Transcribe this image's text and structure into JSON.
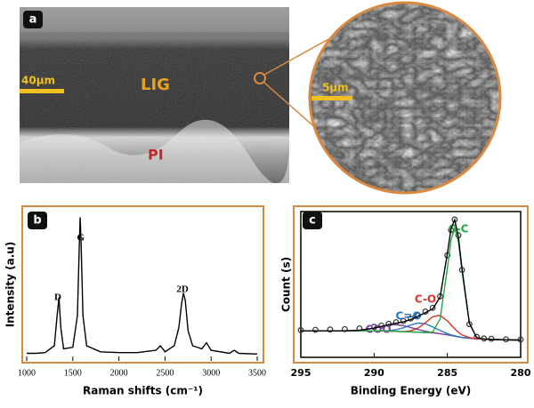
{
  "figure_a": {
    "label": "a",
    "scale_bar_large": "40μm",
    "scale_bar_small": "5μm",
    "region_top": "LIG",
    "region_bottom": "PI"
  },
  "chart_data": [
    {
      "type": "line",
      "label": "b",
      "xlabel": "Raman shifts (cm⁻¹)",
      "ylabel": "Intensity (a.u)",
      "annotations": [
        "D",
        "G",
        "2D"
      ],
      "x": [
        1000,
        1100,
        1200,
        1300,
        1330,
        1350,
        1370,
        1400,
        1500,
        1550,
        1570,
        1580,
        1590,
        1610,
        1650,
        1800,
        2000,
        2200,
        2400,
        2450,
        2500,
        2600,
        2650,
        2680,
        2700,
        2720,
        2750,
        2800,
        2900,
        2950,
        3000,
        3200,
        3250,
        3300,
        3500
      ],
      "series": [
        {
          "color": "#000000",
          "values": [
            5,
            5,
            5.5,
            10,
            30,
            42,
            22,
            8,
            9,
            30,
            75,
            95,
            78,
            30,
            10,
            6,
            5.5,
            5.5,
            7,
            10,
            6,
            10,
            22,
            38,
            45,
            40,
            20,
            10,
            8,
            12,
            7,
            5,
            7,
            5,
            4.5
          ]
        }
      ],
      "xlim": [
        1000,
        3500
      ],
      "xticks": [
        1000,
        1500,
        2000,
        2500,
        3000,
        3500
      ],
      "ylim": [
        0,
        100
      ],
      "frame_color": "#d9893f"
    },
    {
      "type": "line",
      "label": "c",
      "xlabel": "Binding Energy (eV)",
      "ylabel": "Count (s)",
      "x": [
        295,
        294,
        293,
        292,
        291,
        290,
        289.5,
        289,
        288.5,
        288,
        287.5,
        287,
        286.5,
        286,
        285.5,
        285,
        284.75,
        284.5,
        284.25,
        284,
        283.5,
        283,
        282.5,
        282,
        281,
        280
      ],
      "series": [
        {
          "type": "scatter",
          "color": "#333333",
          "values": [
            20.5,
            20.8,
            21,
            21.3,
            21.8,
            23,
            24,
            25.2,
            26.5,
            27.4,
            29.3,
            31.6,
            34.5,
            37.4,
            46,
            77,
            96,
            104,
            92,
            66,
            25,
            15.5,
            14.2,
            14,
            13.6,
            13.4
          ]
        },
        {
          "color": "#999999",
          "values": [
            20,
            20,
            20,
            20,
            20,
            20,
            20,
            19.8,
            19.6,
            19.4,
            19.2,
            19,
            18.7,
            18.3,
            17.8,
            17,
            16.5,
            16,
            15.5,
            15,
            14.5,
            14,
            13.8,
            13.5,
            13.2,
            13
          ]
        },
        {
          "name": "COO",
          "color": "#7b3fa0",
          "values": [
            20,
            20,
            20,
            20,
            20.4,
            22,
            23.3,
            24.3,
            24.6,
            23.9,
            22.5,
            21,
            19.7,
            18.7,
            17.8,
            17,
            16.5,
            16,
            15.5,
            15,
            14.5,
            14,
            13.8,
            13.5,
            13.2,
            13
          ]
        },
        {
          "name": "C=O",
          "color": "#1f78c8",
          "values": [
            20,
            20,
            20,
            20,
            20,
            20,
            20,
            20.1,
            20.8,
            22.3,
            24.4,
            25.9,
            25.3,
            23,
            20.3,
            17.9,
            16.9,
            16.3,
            15.5,
            15,
            14.5,
            14,
            13.8,
            13.5,
            13.2,
            13
          ]
        },
        {
          "name": "C-O",
          "color": "#e0302a",
          "values": [
            20,
            20,
            20,
            20,
            20,
            20,
            20,
            19.8,
            19.6,
            19.4,
            20,
            22.1,
            26.1,
            30.6,
            31.8,
            27.5,
            24.5,
            21.5,
            18.9,
            16.9,
            14.9,
            14,
            13.8,
            13.5,
            13.2,
            13
          ]
        },
        {
          "name": "C-C",
          "color": "#22a845",
          "values": [
            20,
            20,
            20,
            20,
            20,
            20,
            20,
            19.8,
            19.6,
            19.4,
            19.2,
            19,
            18.7,
            19.2,
            28.8,
            67,
            88.5,
            98,
            87.5,
            65,
            25.5,
            14.9,
            13.8,
            13.5,
            13.2,
            13
          ]
        },
        {
          "color": "#000000",
          "values": [
            20,
            20,
            20,
            20,
            20.4,
            22,
            23.3,
            24.7,
            25.8,
            26.8,
            28.5,
            31,
            33.7,
            36.6,
            45.3,
            78.4,
            97,
            103.8,
            90.9,
            66.9,
            25.9,
            14.9,
            13.8,
            13.5,
            13.2,
            13
          ]
        }
      ],
      "xlim": [
        295,
        280
      ],
      "xticks": [
        295,
        290,
        285,
        280
      ],
      "ylim": [
        0,
        110
      ],
      "frame_color": "#d9893f"
    }
  ]
}
